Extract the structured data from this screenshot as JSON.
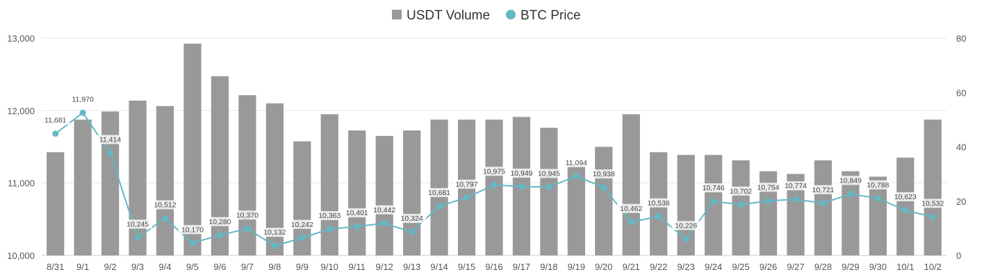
{
  "chart_data": {
    "type": "bar",
    "categories": [
      "8/31",
      "9/1",
      "9/2",
      "9/3",
      "9/4",
      "9/5",
      "9/6",
      "9/7",
      "9/8",
      "9/9",
      "9/10",
      "9/11",
      "9/12",
      "9/13",
      "9/14",
      "9/15",
      "9/16",
      "9/17",
      "9/18",
      "9/19",
      "9/20",
      "9/21",
      "9/22",
      "9/23",
      "9/24",
      "9/25",
      "9/26",
      "9/27",
      "9/28",
      "9/29",
      "9/30",
      "10/1",
      "10/2"
    ],
    "series": [
      {
        "name": "USDT Volume",
        "type": "bar",
        "axis": "right",
        "color": "#999999",
        "values": [
          38,
          50,
          53,
          57,
          55,
          78,
          66,
          59,
          56,
          42,
          52,
          46,
          44,
          46,
          50,
          50,
          50,
          51,
          47,
          33,
          40,
          52,
          38,
          37,
          37,
          35,
          31,
          30,
          35,
          31,
          29,
          36,
          50
        ]
      },
      {
        "name": "BTC Price",
        "type": "line",
        "axis": "left",
        "color": "#63b8c4",
        "values": [
          11681,
          11970,
          11414,
          10245,
          10512,
          10170,
          10280,
          10370,
          10132,
          10242,
          10363,
          10401,
          10442,
          10324,
          10681,
          10797,
          10975,
          10949,
          10945,
          11094,
          10938,
          10462,
          10538,
          10226,
          10746,
          10702,
          10754,
          10774,
          10721,
          10849,
          10788,
          10623,
          10532
        ],
        "labels": [
          "11,681",
          "11,970",
          "11,414",
          "10,245",
          "10,512",
          "10,170",
          "10,280",
          "10,370",
          "10,132",
          "10,242",
          "10,363",
          "10,401",
          "10,442",
          "10,324",
          "10,681",
          "10,797",
          "10,975",
          "10,949",
          "10,945",
          "11,094",
          "10,938",
          "10,462",
          "10,538",
          "10,226",
          "10,746",
          "10,702",
          "10,754",
          "10,774",
          "10,721",
          "10,849",
          "10,788",
          "10,623",
          "10,532"
        ]
      }
    ],
    "y_left": {
      "range": [
        10000,
        13000
      ],
      "ticks": [
        "10,000",
        "11,000",
        "12,000",
        "13,000"
      ]
    },
    "y_right": {
      "range": [
        0,
        80
      ],
      "ticks": [
        "0",
        "20",
        "40",
        "60",
        "80"
      ]
    },
    "legend": {
      "position": "top-center",
      "items": [
        "USDT Volume",
        "BTC Price"
      ]
    },
    "grid": true,
    "title": "",
    "xlabel": "",
    "ylabel": ""
  }
}
